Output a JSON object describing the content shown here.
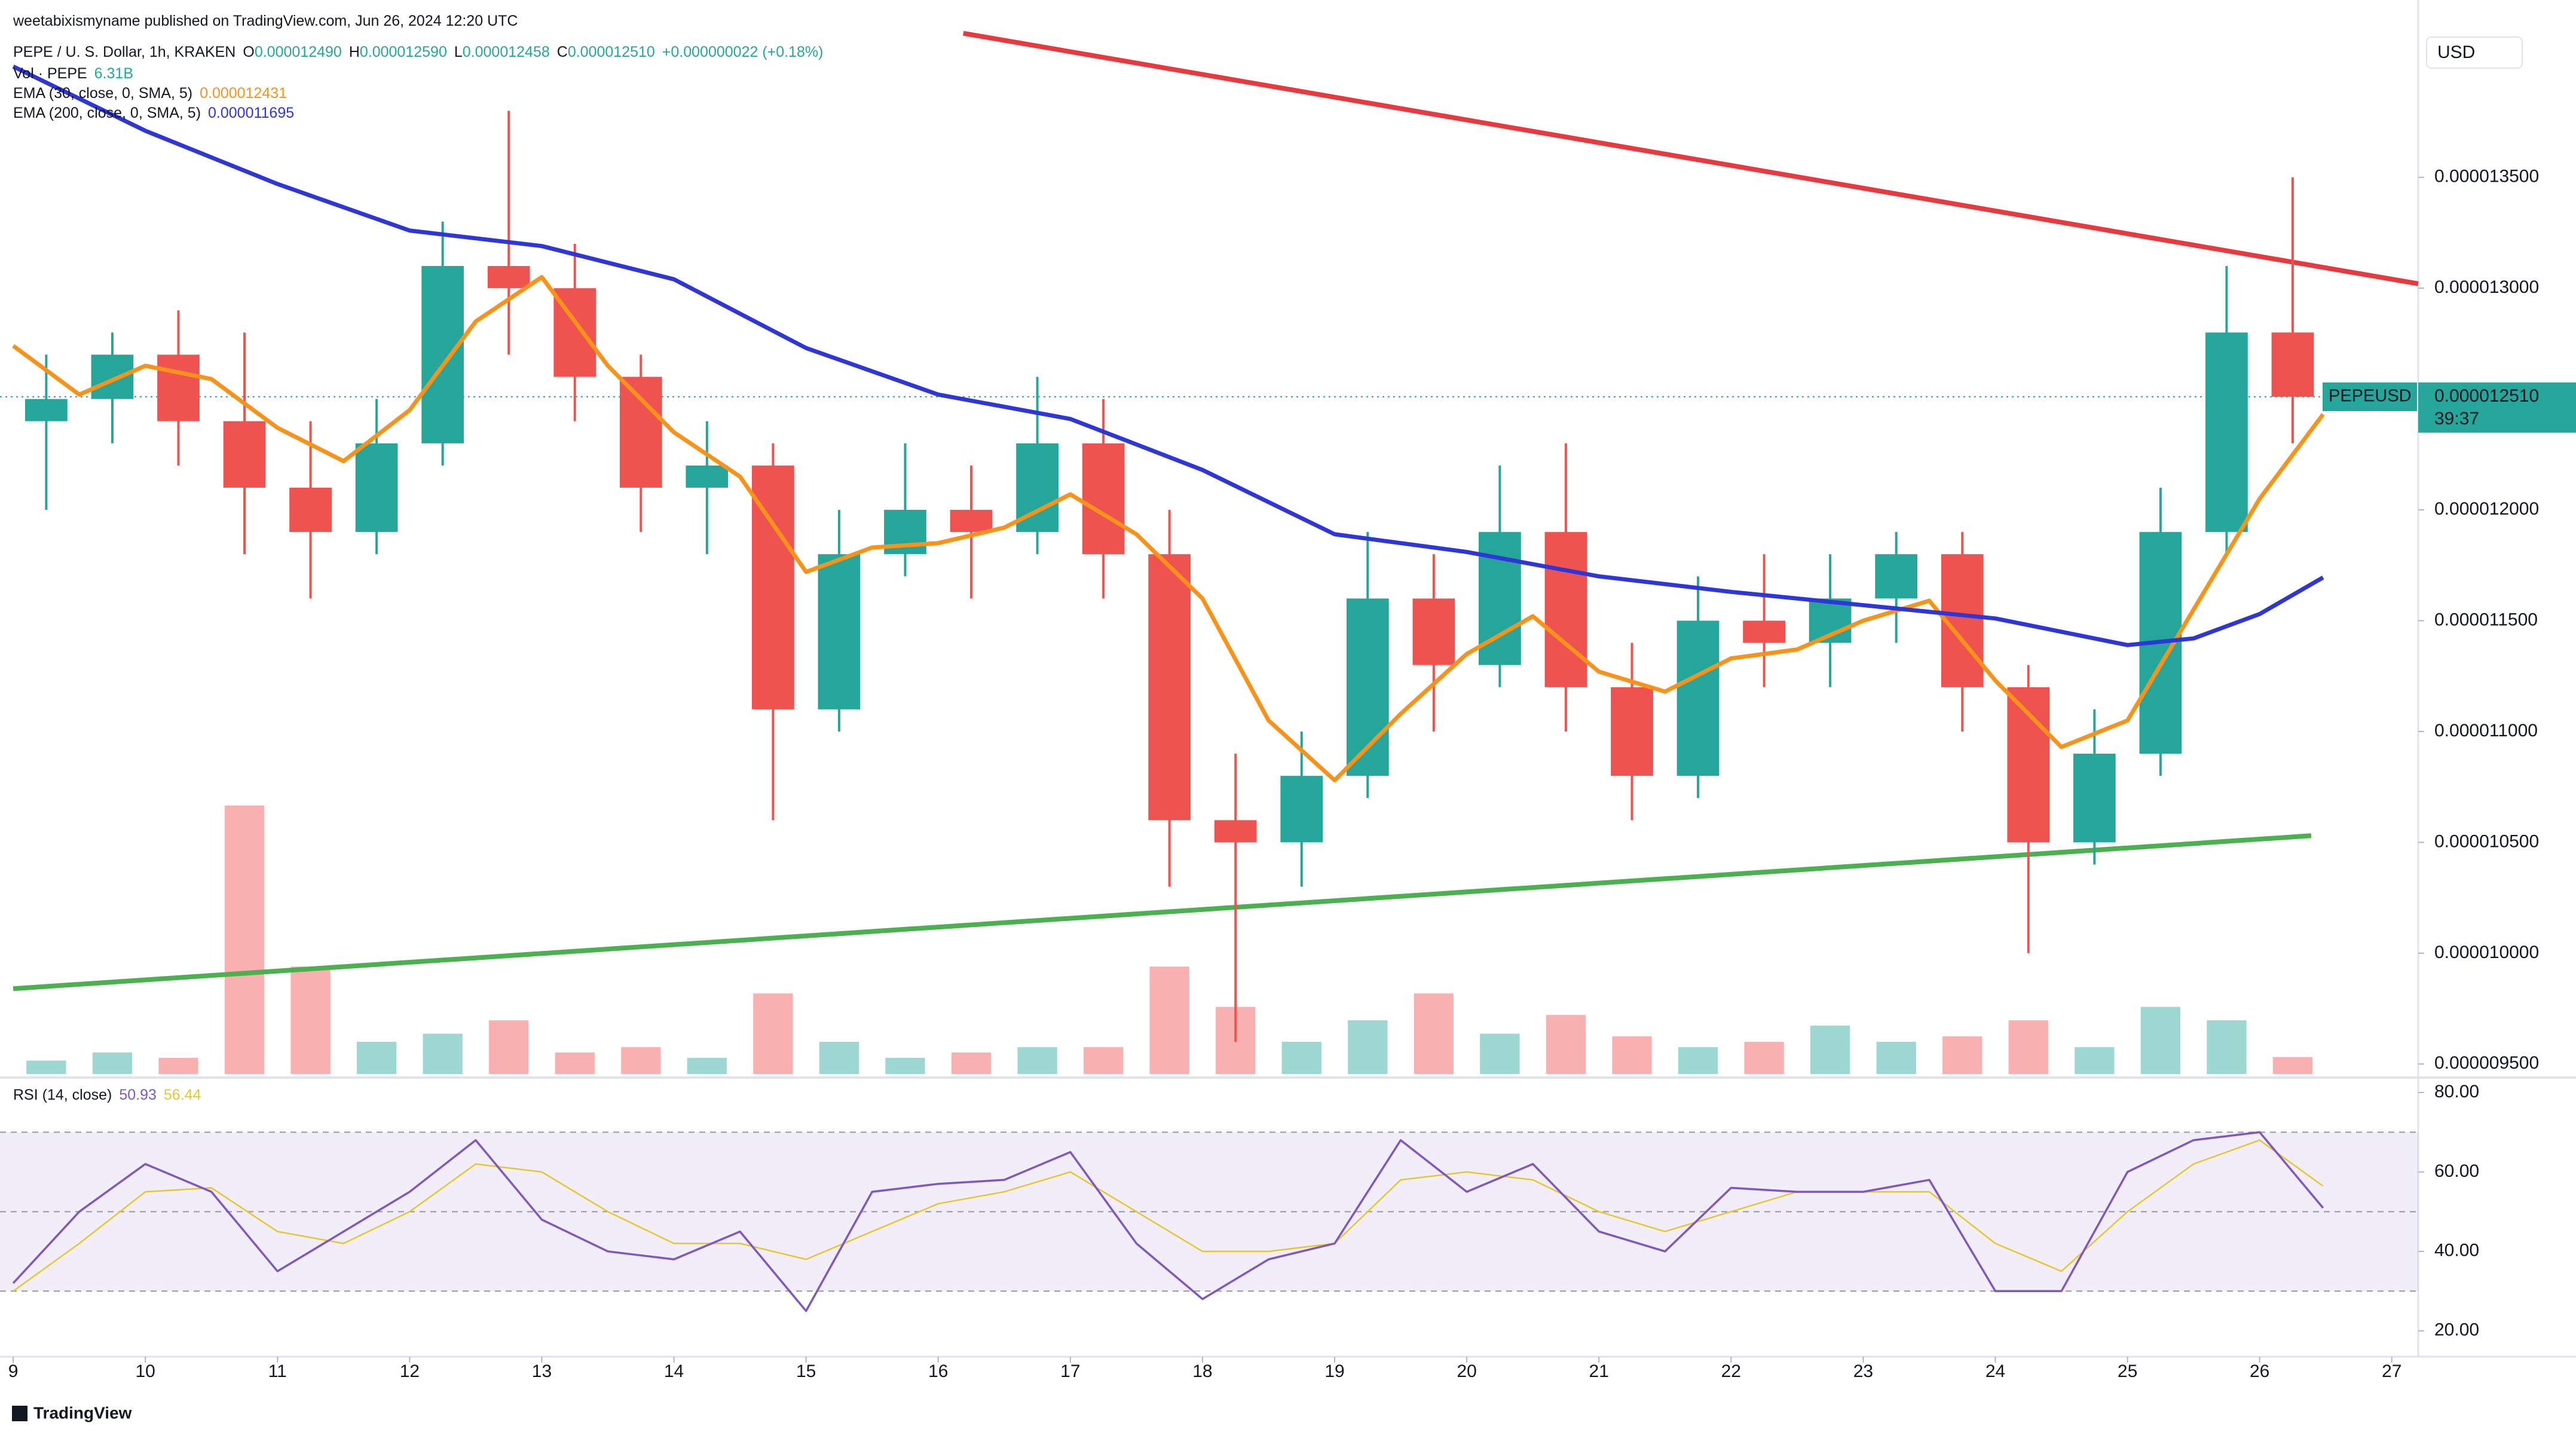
{
  "branding": "TradingView",
  "chart_data": [
    {
      "type": "candlestick",
      "attribution": "weetabixismyname published on TradingView.com, Jun 26, 2024 12:20 UTC",
      "symbol": "PEPE / U. S. Dollar, 1h, KRAKEN",
      "ohlc": [
        {
          "label": "O",
          "text": "0.000012490"
        },
        {
          "label": "H",
          "text": "0.000012590"
        },
        {
          "label": "L",
          "text": "0.000012458"
        },
        {
          "label": "C",
          "text": "0.000012510"
        }
      ],
      "change": "+0.000000022 (+0.18%)",
      "currency": "USD",
      "up_color": "#26a69a",
      "down_color": "#ef5350",
      "x": [
        9.25,
        9.75,
        10.25,
        10.75,
        11.25,
        11.75,
        12.25,
        12.75,
        13.25,
        13.75,
        14.25,
        14.75,
        15.25,
        15.75,
        16.25,
        16.75,
        17.25,
        17.75,
        18.25,
        18.75,
        19.25,
        19.75,
        20.25,
        20.75,
        21.25,
        21.75,
        22.25,
        22.75,
        23.25,
        23.75,
        24.25,
        24.75,
        25.25,
        25.75,
        26.25
      ],
      "open": [
        1.24e-05,
        1.25e-05,
        1.27e-05,
        1.24e-05,
        1.21e-05,
        1.19e-05,
        1.23e-05,
        1.31e-05,
        1.3e-05,
        1.26e-05,
        1.21e-05,
        1.22e-05,
        1.11e-05,
        1.18e-05,
        1.2e-05,
        1.19e-05,
        1.23e-05,
        1.18e-05,
        1.06e-05,
        1.05e-05,
        1.08e-05,
        1.16e-05,
        1.13e-05,
        1.19e-05,
        1.12e-05,
        1.08e-05,
        1.15e-05,
        1.14e-05,
        1.16e-05,
        1.18e-05,
        1.12e-05,
        1.05e-05,
        1.09e-05,
        1.19e-05,
        1.28e-05
      ],
      "high": [
        1.27e-05,
        1.28e-05,
        1.29e-05,
        1.28e-05,
        1.24e-05,
        1.25e-05,
        1.33e-05,
        1.38e-05,
        1.32e-05,
        1.27e-05,
        1.24e-05,
        1.23e-05,
        1.2e-05,
        1.23e-05,
        1.22e-05,
        1.26e-05,
        1.25e-05,
        1.2e-05,
        1.09e-05,
        1.1e-05,
        1.19e-05,
        1.18e-05,
        1.22e-05,
        1.23e-05,
        1.14e-05,
        1.17e-05,
        1.18e-05,
        1.18e-05,
        1.19e-05,
        1.19e-05,
        1.13e-05,
        1.11e-05,
        1.21e-05,
        1.31e-05,
        1.35e-05
      ],
      "low": [
        1.2e-05,
        1.23e-05,
        1.22e-05,
        1.18e-05,
        1.16e-05,
        1.18e-05,
        1.22e-05,
        1.27e-05,
        1.24e-05,
        1.19e-05,
        1.18e-05,
        1.06e-05,
        1.1e-05,
        1.17e-05,
        1.16e-05,
        1.18e-05,
        1.16e-05,
        1.03e-05,
        9.6e-06,
        1.03e-05,
        1.07e-05,
        1.1e-05,
        1.12e-05,
        1.1e-05,
        1.06e-05,
        1.07e-05,
        1.12e-05,
        1.12e-05,
        1.14e-05,
        1.1e-05,
        1e-05,
        1.04e-05,
        1.08e-05,
        1.18e-05,
        1.23e-05
      ],
      "close": [
        1.25e-05,
        1.27e-05,
        1.24e-05,
        1.21e-05,
        1.19e-05,
        1.23e-05,
        1.31e-05,
        1.3e-05,
        1.26e-05,
        1.21e-05,
        1.22e-05,
        1.11e-05,
        1.18e-05,
        1.2e-05,
        1.19e-05,
        1.23e-05,
        1.18e-05,
        1.06e-05,
        1.05e-05,
        1.08e-05,
        1.16e-05,
        1.13e-05,
        1.19e-05,
        1.12e-05,
        1.08e-05,
        1.15e-05,
        1.14e-05,
        1.16e-05,
        1.18e-05,
        1.12e-05,
        1.05e-05,
        1.09e-05,
        1.19e-05,
        1.28e-05,
        1.251e-05
      ],
      "volume": {
        "label": "Vol · PEPE",
        "text": "6.31B",
        "values": [
          5,
          8,
          6,
          100,
          40,
          12,
          15,
          20,
          8,
          10,
          6,
          30,
          12,
          6,
          8,
          10,
          10,
          40,
          25,
          12,
          20,
          30,
          15,
          22,
          14,
          10,
          12,
          18,
          12,
          14,
          20,
          10,
          25,
          20,
          6.31
        ]
      },
      "series": [
        {
          "name": "EMA (30, close, 0, SMA, 5)",
          "legend_value": "0.000012431",
          "color": "#f7931a",
          "x": [
            9,
            9.5,
            10,
            10.5,
            11,
            11.5,
            12,
            12.5,
            13,
            13.5,
            14,
            14.5,
            15,
            15.5,
            16,
            16.5,
            17,
            17.5,
            18,
            18.5,
            19,
            19.5,
            20,
            20.5,
            21,
            21.5,
            22,
            22.5,
            23,
            23.5,
            24,
            24.5,
            25,
            25.5,
            26,
            26.48
          ],
          "values": [
            1.274e-05,
            1.252e-05,
            1.265e-05,
            1.259e-05,
            1.237e-05,
            1.222e-05,
            1.245e-05,
            1.285e-05,
            1.305e-05,
            1.265e-05,
            1.235e-05,
            1.215e-05,
            1.172e-05,
            1.183e-05,
            1.185e-05,
            1.192e-05,
            1.207e-05,
            1.189e-05,
            1.16e-05,
            1.105e-05,
            1.078e-05,
            1.108e-05,
            1.135e-05,
            1.152e-05,
            1.127e-05,
            1.118e-05,
            1.133e-05,
            1.137e-05,
            1.15e-05,
            1.159e-05,
            1.123e-05,
            1.093e-05,
            1.105e-05,
            1.155e-05,
            1.205e-05,
            1.2431e-05
          ]
        },
        {
          "name": "EMA (200, close, 0, SMA, 5)",
          "legend_value": "0.000011695",
          "color": "#2f36d8",
          "x": [
            9,
            10,
            11,
            12,
            13,
            14,
            15,
            16,
            17,
            18,
            19,
            20,
            21,
            22,
            23,
            24,
            25,
            25.5,
            26,
            26.48
          ],
          "values": [
            1.4e-05,
            1.371e-05,
            1.347e-05,
            1.326e-05,
            1.319e-05,
            1.304e-05,
            1.273e-05,
            1.252e-05,
            1.241e-05,
            1.218e-05,
            1.189e-05,
            1.181e-05,
            1.17e-05,
            1.163e-05,
            1.157e-05,
            1.151e-05,
            1.139e-05,
            1.142e-05,
            1.153e-05,
            1.1695e-05
          ]
        }
      ],
      "trendlines": [
        {
          "color": "#e8393f",
          "x": [
            16.19,
            27.2
          ],
          "values": [
            1.415e-05,
            1.302e-05
          ]
        },
        {
          "color": "#4caf50",
          "x": [
            9,
            26.39
          ],
          "values": [
            9.84e-06,
            1.053e-05
          ]
        }
      ],
      "last_price": {
        "value": 1.251e-05,
        "label": "0.000012510",
        "symbol": "PEPEUSD",
        "countdown": "39:37"
      },
      "xlim": [
        8.9,
        27.2
      ],
      "xticks": [
        9,
        10,
        11,
        12,
        13,
        14,
        15,
        16,
        17,
        18,
        19,
        20,
        21,
        22,
        23,
        24,
        25,
        26,
        27
      ],
      "ylim": [
        9.455e-06,
        1.43e-05
      ],
      "yticks": [
        {
          "value": 9.5e-06,
          "label": "0.000009500"
        },
        {
          "value": 1e-05,
          "label": "0.000010000"
        },
        {
          "value": 1.05e-05,
          "label": "0.000010500"
        },
        {
          "value": 1.1e-05,
          "label": "0.000011000"
        },
        {
          "value": 1.15e-05,
          "label": "0.000011500"
        },
        {
          "value": 1.2e-05,
          "label": "0.000012000"
        },
        {
          "value": 1.25e-05,
          "label": "0.000012500"
        },
        {
          "value": 1.3e-05,
          "label": "0.000013000"
        },
        {
          "value": 1.35e-05,
          "label": "0.000013500"
        }
      ]
    },
    {
      "type": "line",
      "title": "RSI (14, close)",
      "series": [
        {
          "legend_value": 50.93,
          "color": "#7e57c2",
          "x": [
            9,
            9.5,
            10,
            10.5,
            11,
            11.5,
            12,
            12.5,
            13,
            13.5,
            14,
            14.5,
            15,
            15.5,
            16,
            16.5,
            17,
            17.5,
            18,
            18.5,
            19,
            19.5,
            20,
            20.5,
            21,
            21.5,
            22,
            22.5,
            23,
            23.5,
            24,
            24.5,
            25,
            25.5,
            26,
            26.48
          ],
          "values": [
            32,
            50,
            62,
            55,
            35,
            45,
            55,
            68,
            48,
            40,
            38,
            45,
            25,
            55,
            57,
            58,
            65,
            42,
            28,
            38,
            42,
            68,
            55,
            62,
            45,
            40,
            56,
            55,
            55,
            58,
            30,
            30,
            60,
            68,
            70,
            50.93
          ]
        },
        {
          "legend_value": 56.44,
          "color": "#e6c72e",
          "x": [
            9,
            9.5,
            10,
            10.5,
            11,
            11.5,
            12,
            12.5,
            13,
            13.5,
            14,
            14.5,
            15,
            15.5,
            16,
            16.5,
            17,
            17.5,
            18,
            18.5,
            19,
            19.5,
            20,
            20.5,
            21,
            21.5,
            22,
            22.5,
            23,
            23.5,
            24,
            24.5,
            25,
            25.5,
            26,
            26.48
          ],
          "values": [
            30,
            42,
            55,
            56,
            45,
            42,
            50,
            62,
            60,
            50,
            42,
            42,
            38,
            45,
            52,
            55,
            60,
            50,
            40,
            40,
            42,
            58,
            60,
            58,
            50,
            45,
            50,
            55,
            55,
            55,
            42,
            35,
            50,
            62,
            68,
            56.44
          ]
        }
      ],
      "levels": [
        30,
        50,
        70
      ],
      "xlim": [
        8.9,
        27.2
      ],
      "ylim": [
        15,
        83.3
      ],
      "yticks": [
        {
          "value": 20,
          "label": "20.00"
        },
        {
          "value": 40,
          "label": "40.00"
        },
        {
          "value": 60,
          "label": "60.00"
        },
        {
          "value": 80,
          "label": "80.00"
        }
      ]
    }
  ]
}
